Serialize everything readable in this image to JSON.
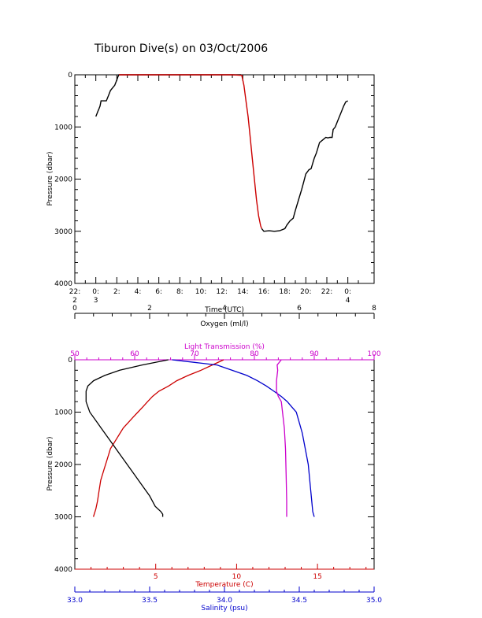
{
  "title": "Tiburon Dive(s) on 03/Oct/2006",
  "chart_data": [
    {
      "type": "line",
      "name": "dive-profile",
      "xlabel": "Time (UTC)",
      "ylabel": "Pressure (dbar)",
      "xlim": [
        22,
        50.5
      ],
      "ylim": [
        4000,
        0
      ],
      "y_ticks": [
        "0",
        "1000",
        "2000",
        "3000",
        "4000"
      ],
      "x_ticks": [
        {
          "v": 22,
          "l1": "22:",
          "l2": "2"
        },
        {
          "v": 24,
          "l1": "0:",
          "l2": "3"
        },
        {
          "v": 26,
          "l1": "2:",
          "l2": ""
        },
        {
          "v": 28,
          "l1": "4:",
          "l2": ""
        },
        {
          "v": 30,
          "l1": "6:",
          "l2": ""
        },
        {
          "v": 32,
          "l1": "8:",
          "l2": ""
        },
        {
          "v": 34,
          "l1": "10:",
          "l2": ""
        },
        {
          "v": 36,
          "l1": "12:",
          "l2": ""
        },
        {
          "v": 38,
          "l1": "14:",
          "l2": ""
        },
        {
          "v": 40,
          "l1": "16:",
          "l2": ""
        },
        {
          "v": 42,
          "l1": "18:",
          "l2": ""
        },
        {
          "v": 44,
          "l1": "20:",
          "l2": ""
        },
        {
          "v": 46,
          "l1": "22:",
          "l2": ""
        },
        {
          "v": 48,
          "l1": "0:",
          "l2": "4"
        }
      ],
      "series": [
        {
          "color": "#000000",
          "x": [
            24.0,
            24.1,
            24.2,
            24.3,
            24.4,
            24.5,
            24.6,
            24.8,
            25.0,
            25.2,
            25.4,
            25.6,
            25.8,
            26.0,
            26.1,
            26.2,
            27.0,
            30.0,
            33.0,
            36.0,
            37.0,
            37.8,
            37.9
          ],
          "y": [
            800,
            750,
            700,
            650,
            600,
            500,
            500,
            500,
            500,
            400,
            300,
            250,
            200,
            100,
            40,
            0,
            0,
            0,
            0,
            0,
            0,
            0,
            10
          ]
        },
        {
          "color": "#cc0000",
          "x": [
            26.2,
            28.0,
            31.0,
            34.0,
            37.0,
            37.9,
            38.1,
            38.3,
            38.5,
            38.7,
            38.9,
            39.1,
            39.3,
            39.5,
            39.7,
            39.8
          ],
          "y": [
            0,
            0,
            0,
            0,
            0,
            10,
            200,
            500,
            800,
            1200,
            1600,
            2000,
            2400,
            2700,
            2900,
            2950
          ]
        },
        {
          "color": "#000000",
          "x": [
            39.8,
            40.0,
            40.5,
            41.0,
            41.5,
            42.0,
            42.2,
            42.5,
            42.8,
            43.0,
            43.3,
            43.6,
            43.8,
            44.0,
            44.3,
            44.5,
            44.8,
            45.0,
            45.3,
            45.6,
            45.9,
            46.1,
            46.3,
            46.5,
            46.6,
            46.8,
            47.0,
            47.2,
            47.4,
            47.6,
            47.8,
            48.0
          ],
          "y": [
            2950,
            3000,
            2990,
            3000,
            2990,
            2950,
            2880,
            2800,
            2750,
            2600,
            2400,
            2200,
            2050,
            1900,
            1820,
            1800,
            1600,
            1500,
            1300,
            1250,
            1200,
            1210,
            1200,
            1200,
            1050,
            1000,
            900,
            800,
            700,
            600,
            520,
            500
          ]
        }
      ]
    },
    {
      "type": "line",
      "name": "ctd-profiles",
      "ylabel": "Pressure (dbar)",
      "ylim": [
        4000,
        0
      ],
      "y_ticks": [
        "0",
        "1000",
        "2000",
        "3000",
        "4000"
      ],
      "axes": [
        {
          "key": "oxygen",
          "label": "Oxygen (ml/l)",
          "color": "#000000",
          "range": [
            0,
            8
          ],
          "ticks": [
            "0",
            "2",
            "4",
            "6",
            "8"
          ]
        },
        {
          "key": "transmission",
          "label": "Light Transmission (%)",
          "color": "#cc00cc",
          "range": [
            50,
            100
          ],
          "ticks": [
            "50",
            "60",
            "70",
            "80",
            "90",
            "100"
          ]
        },
        {
          "key": "temperature",
          "label": "Temperature (C)",
          "color": "#cc0000",
          "range": [
            0,
            18.5
          ],
          "ticks": [
            "5",
            "10",
            "15"
          ],
          "tick_values": [
            5,
            10,
            15
          ]
        },
        {
          "key": "salinity",
          "label": "Salinity (psu)",
          "color": "#0000cc",
          "range": [
            33.0,
            35.0
          ],
          "ticks": [
            "33.0",
            "33.5",
            "34.0",
            "34.5",
            "35.0"
          ]
        }
      ],
      "series": [
        {
          "axis": "temperature",
          "color": "#cc0000",
          "x": [
            9.2,
            8.5,
            7.8,
            7.0,
            6.3,
            5.8,
            5.2,
            4.8,
            4.5,
            4.2,
            3.9,
            3.6,
            3.3,
            3.0,
            2.8,
            2.6,
            2.4,
            2.2,
            2.0,
            1.8,
            1.6,
            1.5,
            1.4,
            1.3,
            1.2,
            1.15
          ],
          "y": [
            0,
            100,
            200,
            300,
            400,
            500,
            600,
            700,
            800,
            900,
            1000,
            1100,
            1200,
            1300,
            1400,
            1500,
            1600,
            1700,
            1900,
            2100,
            2300,
            2500,
            2700,
            2850,
            2950,
            3000
          ]
        },
        {
          "axis": "oxygen",
          "color": "#000000",
          "x": [
            2.5,
            1.8,
            1.2,
            0.8,
            0.5,
            0.35,
            0.3,
            0.3,
            0.4,
            0.6,
            0.8,
            1.0,
            1.2,
            1.4,
            1.6,
            1.8,
            2.0,
            2.15,
            2.3,
            2.35,
            2.35
          ],
          "y": [
            0,
            100,
            200,
            300,
            400,
            500,
            600,
            800,
            1000,
            1200,
            1400,
            1600,
            1800,
            2000,
            2200,
            2400,
            2600,
            2800,
            2900,
            2950,
            3000
          ]
        },
        {
          "axis": "salinity",
          "color": "#0000cc",
          "x": [
            33.65,
            33.8,
            33.95,
            34.05,
            34.15,
            34.22,
            34.28,
            34.33,
            34.38,
            34.42,
            34.45,
            34.48,
            34.5,
            34.52,
            34.54,
            34.56,
            34.57,
            34.58,
            34.59,
            34.6
          ],
          "y": [
            0,
            50,
            100,
            200,
            300,
            400,
            500,
            600,
            700,
            800,
            900,
            1000,
            1200,
            1400,
            1700,
            2000,
            2300,
            2600,
            2900,
            3000
          ]
        },
        {
          "axis": "transmission",
          "color": "#cc00cc",
          "x": [
            84.5,
            83.8,
            83.9,
            83.7,
            83.7,
            84.0,
            84.5,
            84.7,
            85.0,
            85.2,
            85.3,
            85.4,
            85.4
          ],
          "y": [
            0,
            100,
            200,
            400,
            600,
            700,
            800,
            1000,
            1300,
            1700,
            2200,
            2700,
            3000
          ]
        }
      ]
    }
  ]
}
